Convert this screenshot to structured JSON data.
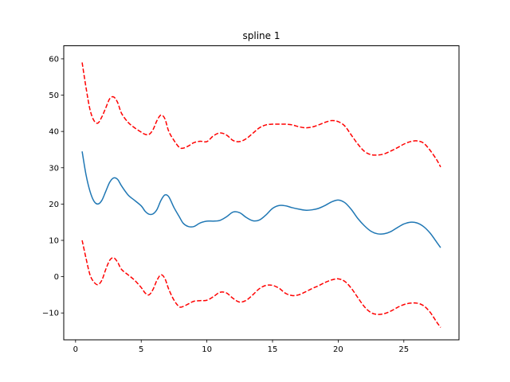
{
  "chart_data": {
    "type": "line",
    "title": "spline 1",
    "xlabel": "",
    "ylabel": "",
    "xlim": [
      -0.9,
      29.2
    ],
    "ylim": [
      -17.4,
      63.6
    ],
    "xticks": [
      0,
      5,
      10,
      15,
      20,
      25
    ],
    "yticks": [
      -10,
      0,
      10,
      20,
      30,
      40,
      50,
      60
    ],
    "grid": false,
    "legend": null,
    "series": [
      {
        "color": "#1f77b4",
        "style": "solid",
        "x": [
          0.5,
          0.8,
          1.1,
          1.4,
          1.7,
          2.0,
          2.3,
          2.6,
          2.9,
          3.2,
          3.5,
          4.0,
          4.5,
          5.0,
          5.3,
          5.6,
          5.9,
          6.2,
          6.5,
          6.8,
          7.1,
          7.5,
          7.9,
          8.2,
          8.6,
          9.0,
          9.5,
          10.0,
          10.5,
          11.0,
          11.5,
          12.0,
          12.5,
          13.0,
          13.5,
          14.0,
          14.5,
          15.0,
          15.5,
          16.0,
          16.5,
          17.0,
          17.5,
          18.0,
          18.5,
          19.0,
          19.5,
          20.0,
          20.5,
          21.0,
          21.5,
          22.0,
          22.5,
          23.0,
          23.5,
          24.0,
          24.5,
          25.0,
          25.5,
          26.0,
          26.5,
          27.0,
          27.5,
          27.8
        ],
        "y": [
          34.5,
          28,
          23.5,
          20.8,
          20,
          21,
          23.5,
          26,
          27.2,
          26.8,
          25,
          22.5,
          21,
          19.5,
          18,
          17.2,
          17.3,
          18.5,
          21,
          22.5,
          22,
          19,
          16.5,
          14.7,
          13.8,
          13.8,
          14.8,
          15.3,
          15.3,
          15.5,
          16.5,
          17.8,
          17.6,
          16.3,
          15.4,
          15.6,
          17,
          18.8,
          19.6,
          19.5,
          19,
          18.6,
          18.3,
          18.4,
          18.8,
          19.6,
          20.6,
          21.1,
          20.4,
          18.5,
          16,
          14,
          12.5,
          11.8,
          11.8,
          12.4,
          13.5,
          14.5,
          15,
          14.8,
          13.8,
          12,
          9.5,
          8
        ]
      },
      {
        "color": "#ff0000",
        "style": "dashed",
        "x": [
          0.5,
          0.8,
          1.1,
          1.4,
          1.7,
          2.0,
          2.3,
          2.6,
          2.9,
          3.2,
          3.5,
          4.0,
          4.5,
          5.0,
          5.3,
          5.6,
          5.9,
          6.2,
          6.5,
          6.8,
          7.1,
          7.5,
          7.9,
          8.2,
          8.6,
          9.0,
          9.5,
          10.0,
          10.5,
          11.0,
          11.5,
          12.0,
          12.5,
          13.0,
          13.5,
          14.0,
          14.5,
          15.0,
          15.5,
          16.0,
          16.5,
          17.0,
          17.5,
          18.0,
          18.5,
          19.0,
          19.5,
          20.0,
          20.5,
          21.0,
          21.5,
          22.0,
          22.5,
          23.0,
          23.5,
          24.0,
          24.5,
          25.0,
          25.5,
          26.0,
          26.5,
          27.0,
          27.5,
          27.8
        ],
        "y": [
          59,
          52,
          46,
          43,
          42.3,
          44,
          46.5,
          49,
          49.5,
          48,
          45,
          42.5,
          41,
          39.8,
          39.2,
          39.2,
          40.5,
          43,
          44.5,
          43.5,
          40,
          37.5,
          35.6,
          35.4,
          36,
          36.9,
          37.3,
          37.2,
          38.8,
          39.6,
          39,
          37.5,
          37.2,
          38,
          39.5,
          41,
          41.8,
          42,
          42,
          42,
          41.8,
          41.3,
          41,
          41.2,
          41.8,
          42.5,
          43,
          42.7,
          41.5,
          39,
          36.5,
          34.5,
          33.6,
          33.5,
          33.8,
          34.6,
          35.5,
          36.5,
          37.2,
          37.4,
          36.8,
          34.8,
          32.2,
          30.2
        ]
      },
      {
        "color": "#ff0000",
        "style": "dashed",
        "x": [
          0.5,
          0.8,
          1.1,
          1.4,
          1.7,
          2.0,
          2.3,
          2.6,
          2.9,
          3.2,
          3.5,
          4.0,
          4.5,
          5.0,
          5.3,
          5.6,
          5.9,
          6.2,
          6.5,
          6.8,
          7.1,
          7.5,
          7.9,
          8.2,
          8.6,
          9.0,
          9.5,
          10.0,
          10.5,
          11.0,
          11.5,
          12.0,
          12.5,
          13.0,
          13.5,
          14.0,
          14.5,
          15.0,
          15.5,
          16.0,
          16.5,
          17.0,
          17.5,
          18.0,
          18.5,
          19.0,
          19.5,
          20.0,
          20.5,
          21.0,
          21.5,
          22.0,
          22.5,
          23.0,
          23.5,
          24.0,
          24.5,
          25.0,
          25.5,
          26.0,
          26.5,
          27.0,
          27.5,
          27.8
        ],
        "y": [
          10,
          5,
          0.5,
          -1.5,
          -2.2,
          -1,
          2,
          4.5,
          5.2,
          4,
          2,
          0.5,
          -1,
          -3,
          -4.5,
          -5,
          -3.5,
          -1,
          0.5,
          -0.5,
          -3.5,
          -6.5,
          -8.3,
          -8.2,
          -7.5,
          -6.8,
          -6.6,
          -6.5,
          -5.5,
          -4.3,
          -4.5,
          -6,
          -7,
          -6.5,
          -5,
          -3.3,
          -2.4,
          -2.4,
          -3.2,
          -4.6,
          -5.2,
          -5,
          -4.2,
          -3.3,
          -2.5,
          -1.6,
          -0.9,
          -0.6,
          -1.3,
          -3.2,
          -5.8,
          -8.3,
          -9.9,
          -10.4,
          -10.2,
          -9.5,
          -8.5,
          -7.7,
          -7.3,
          -7.3,
          -8,
          -9.8,
          -12.5,
          -14
        ]
      }
    ]
  }
}
